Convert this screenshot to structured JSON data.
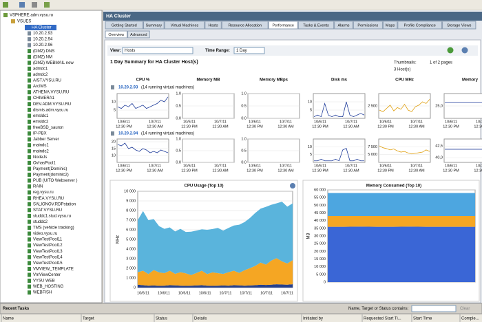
{
  "tree": {
    "root": "VSPHERE.adm.vysu.ru",
    "datacenter": "VSUES",
    "cluster": "HA Cluster",
    "items": [
      "10.20.2.93",
      "10.20.2.94",
      "10.20.2.96",
      "(DMZ) DNS",
      "(DMZ) NM",
      "(DMZ) WEBMAIL new",
      "admdc1",
      "admdc2",
      "AIST.VYSU.RU",
      "ArcIMS",
      "ATHENA.VYSU.RU",
      "CHIMERA1",
      "DEV.ADM.VYSU.RU",
      "dismis.adm.vysu.ru",
      "emsldc1",
      "emsldc2",
      "freeBSD_sauron",
      "IP-PBX",
      "Jabber Server",
      "maindc1",
      "maindc2",
      "NodeJs",
      "OvhasPool1",
      "Payment(Dominic)",
      "Payment(dominic2)",
      "PUB (UITO Webserver )",
      "RAIN",
      "reg.vysu.ru",
      "RHEA.VYSU.RU",
      "SALIONOV.RDPstation",
      "STAT.VYSU.RU",
      "studdc1.stud.vysu.ru",
      "studdc2",
      "TMS (vehicle tracking)",
      "video.vysu.ru",
      "ViewTestPool11",
      "ViewTestPool12",
      "ViewTestPool13",
      "ViewTestPool14",
      "ViewTestPool15",
      "VMVIEW_TEMPLATE",
      "VmViewCenter",
      "VYSU WEB",
      "WEB_HOSTING",
      "WEBFISH"
    ]
  },
  "header": {
    "title": "HA Cluster",
    "tabs": [
      "Getting Started",
      "Summary",
      "Virtual Machines",
      "Hosts",
      "Resource Allocation",
      "Performance",
      "Tasks & Events",
      "Alarms",
      "Permissions",
      "Maps",
      "Profile Compliance",
      "Storage Views"
    ],
    "subtabs": [
      "Overview",
      "Advanced"
    ]
  },
  "controls": {
    "view_label": "View:",
    "view_value": "Hosts",
    "time_range_label": "Time Range:",
    "time_range_value": "1 Day",
    "thumbnails_label": "Thumbnails:",
    "page_info": "1 of 2 pages",
    "host_count": "3 Host(s)"
  },
  "summary_title": "1 Day Summary for HA Cluster Host(s)",
  "thumbnail_columns": [
    "CPU %",
    "Memory MB",
    "Memory MBps",
    "Disk ms",
    "CPU MHz",
    "Memory"
  ],
  "thumbnail_xlabels": [
    {
      "date": "10/6/11",
      "time": "12:30 PM"
    },
    {
      "date": "10/7/11",
      "time": "12:30 AM"
    }
  ],
  "hosts": [
    {
      "name": "10.20.2.93",
      "note": "(14 running virtual machines)",
      "charts": [
        {
          "ylim": [
            0,
            15
          ],
          "yticks": [
            10,
            5
          ],
          "color": "#1f3c9a",
          "values": [
            7,
            6,
            8,
            7,
            9,
            6,
            7,
            8,
            6,
            7,
            8,
            9,
            11,
            10,
            13
          ]
        },
        {
          "ylim": [
            0,
            1
          ],
          "yticks": [
            {
              "value": 1,
              "label": "1.0"
            },
            {
              "value": 0.5,
              "label": "0.5"
            },
            {
              "value": 0,
              "label": "0.0"
            }
          ]
        },
        {
          "ylim": [
            0,
            1
          ],
          "yticks": [
            {
              "value": 1,
              "label": "1.0"
            },
            {
              "value": 0.5,
              "label": "0.5"
            },
            {
              "value": 0,
              "label": "0.0"
            }
          ]
        },
        {
          "ylim": [
            0,
            15
          ],
          "yticks": [
            10,
            5
          ],
          "color": "#1f3c9a",
          "values": [
            1,
            2,
            1,
            9,
            2,
            1,
            2,
            1,
            1,
            10,
            2,
            1,
            2,
            3,
            2
          ]
        },
        {
          "ylim": [
            1000,
            4000
          ],
          "yticks": [
            {
              "value": 2500,
              "label": "2 500"
            }
          ],
          "color": "#e0a010",
          "values": [
            2000,
            1800,
            2200,
            2600,
            1900,
            2300,
            2100,
            2700,
            2000,
            1800,
            2400,
            2600,
            3000,
            2800,
            3300
          ]
        },
        {
          "ylim": [
            24,
            26
          ],
          "yticks": [
            {
              "value": 25,
              "label": "25,0"
            }
          ],
          "color": "#1f3c9a",
          "values": [
            25.3,
            25.3,
            25.3,
            25.3,
            25.3
          ]
        }
      ]
    },
    {
      "name": "10.20.2.94",
      "note": "(14 running virtual machines)",
      "charts": [
        {
          "ylim": [
            5,
            22
          ],
          "yticks": [
            20,
            15,
            10
          ],
          "color": "#1f3c9a",
          "values": [
            18,
            17,
            19,
            15,
            16,
            14,
            13,
            15,
            14,
            12,
            13,
            12,
            14,
            13,
            12
          ]
        },
        {
          "ylim": [
            0,
            1
          ],
          "yticks": [
            {
              "value": 1,
              "label": "1.0"
            },
            {
              "value": 0.5,
              "label": "0.5"
            },
            {
              "value": 0,
              "label": "0.0"
            }
          ]
        },
        {
          "ylim": [
            0,
            1
          ],
          "yticks": [
            {
              "value": 1,
              "label": "1.0"
            },
            {
              "value": 0.5,
              "label": "0.5"
            },
            {
              "value": 0,
              "label": "0.0"
            }
          ]
        },
        {
          "ylim": [
            0,
            15
          ],
          "yticks": [
            10,
            5
          ],
          "color": "#1f3c9a",
          "values": [
            1,
            1,
            2,
            1,
            1,
            1,
            2,
            1,
            8,
            9,
            1,
            1,
            2,
            1,
            1
          ]
        },
        {
          "ylim": [
            2500,
            10000
          ],
          "yticks": [
            {
              "value": 7500,
              "label": "7 500"
            },
            {
              "value": 5000,
              "label": "5 000"
            }
          ],
          "color": "#e0a010",
          "values": [
            7800,
            7200,
            6900,
            6500,
            6800,
            6200,
            5800,
            6000,
            5500,
            5200,
            5400,
            5600,
            5800,
            6500,
            6000
          ]
        },
        {
          "ylim": [
            39,
            44
          ],
          "yticks": [
            {
              "value": 42.5,
              "label": "42,5"
            },
            {
              "value": 40,
              "label": "40,0"
            }
          ],
          "color": "#1f3c9a",
          "values": [
            41.8,
            41.8,
            41.8,
            41.8,
            41.8
          ]
        }
      ]
    }
  ],
  "chart_data": [
    {
      "type": "area",
      "title": "CPU Usage (Top 10)",
      "y_label": "MHz",
      "ylim": [
        0,
        10000
      ],
      "yticks": [
        0,
        {
          "value": 1000,
          "label": "1 000"
        },
        {
          "value": 2000,
          "label": "2 000"
        },
        {
          "value": 3000,
          "label": "3 000"
        },
        {
          "value": 4000,
          "label": "4 000"
        },
        {
          "value": 5000,
          "label": "5 000"
        },
        {
          "value": 6000,
          "label": "6 000"
        },
        {
          "value": 7000,
          "label": "7 000"
        },
        {
          "value": 8000,
          "label": "8 000"
        },
        {
          "value": 9000,
          "label": "9 000"
        },
        {
          "value": 10000,
          "label": "10 000"
        }
      ],
      "x_labels": [
        "10/6/11",
        "10/6/11",
        "10/6/11",
        "10/6/11",
        "10/7/11",
        "10/7/11",
        "10/7/11",
        "10/7/11"
      ],
      "series": [
        {
          "color": "#27408b",
          "values": [
            300,
            250,
            200,
            220,
            180,
            200,
            250,
            230,
            200,
            180,
            200,
            220,
            250,
            200,
            180,
            200,
            220,
            200,
            250,
            230,
            200,
            220,
            250,
            300,
            280,
            300,
            350,
            320,
            300,
            350
          ]
        },
        {
          "color": "#f5a623",
          "values": [
            1300,
            1500,
            1200,
            1600,
            1400,
            1300,
            1500,
            1200,
            1400,
            1300,
            1100,
            1300,
            1500,
            1200,
            1400,
            1300,
            1200,
            1400,
            1500,
            1300,
            1600,
            1800,
            2000,
            2300,
            2100,
            2500,
            2700,
            2400,
            2200,
            2500
          ]
        },
        {
          "color": "#5ab4dc",
          "values": [
            5400,
            6200,
            5600,
            5300,
            4800,
            4600,
            4500,
            4400,
            4500,
            4300,
            4500,
            4400,
            4300,
            4600,
            4500,
            4700,
            4500,
            4600,
            4700,
            5000,
            5000,
            5200,
            5500,
            5600,
            6000,
            5800,
            5700,
            6200,
            5900,
            5900
          ]
        }
      ]
    },
    {
      "type": "area",
      "title": "Memory Consumed (Top 10)",
      "y_label": "MB",
      "ylim": [
        0,
        60000
      ],
      "yticks": [
        0,
        {
          "value": 5000,
          "label": "5 000"
        },
        {
          "value": 10000,
          "label": "10 000"
        },
        {
          "value": 15000,
          "label": "15 000"
        },
        {
          "value": 20000,
          "label": "20 000"
        },
        {
          "value": 25000,
          "label": "25 000"
        },
        {
          "value": 30000,
          "label": "30 000"
        },
        {
          "value": 35000,
          "label": "35 000"
        },
        {
          "value": 40000,
          "label": "40 000"
        },
        {
          "value": 45000,
          "label": "45 000"
        },
        {
          "value": 50000,
          "label": "50 000"
        },
        {
          "value": 55000,
          "label": "55 000"
        },
        {
          "value": 60000,
          "label": "60 000"
        }
      ],
      "series": [
        {
          "color": "#3a66d6",
          "values": [
            36000,
            36000,
            36100,
            36000,
            36000,
            36100,
            36000,
            36000,
            36000,
            36000
          ]
        },
        {
          "color": "#f5a623",
          "values": [
            7000,
            7000,
            6900,
            7000,
            7000,
            6900,
            7000,
            7000,
            7000,
            7000
          ]
        },
        {
          "color": "#4da6e0",
          "values": [
            15000,
            15000,
            15000,
            15000,
            15000,
            15000,
            15000,
            15000,
            15000,
            15000
          ]
        }
      ]
    }
  ],
  "tasks": {
    "title": "Recent Tasks",
    "filter_label": "Name, Target or Status contains:",
    "clear": "Clear",
    "columns": [
      "Name",
      "Target",
      "Status",
      "Details",
      "Initiated by",
      "Requested Start Ti...",
      "Start Time",
      "Comple..."
    ]
  }
}
